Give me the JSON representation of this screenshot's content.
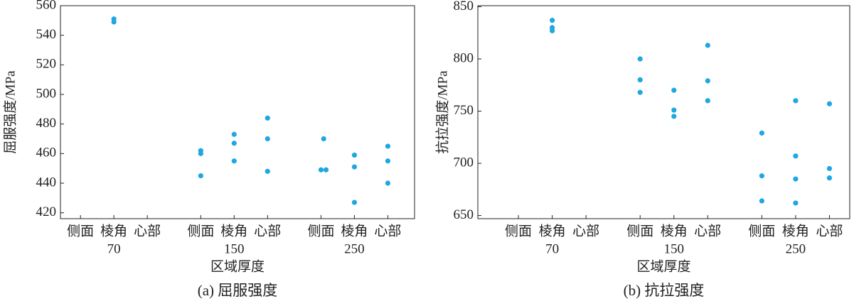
{
  "chart_data": [
    {
      "type": "scatter",
      "ylabel": "屈服强度/MPa",
      "xlabel": "区域厚度",
      "caption": "(a) 屈服强度",
      "color": "#1ea7e1",
      "xlim": [
        0.4,
        11.0
      ],
      "ylim": [
        416,
        560
      ],
      "xticks": [
        {
          "value": 1,
          "label": "侧面"
        },
        {
          "value": 2,
          "label": "棱角"
        },
        {
          "value": 3,
          "label": "心部"
        },
        {
          "value": 4.6,
          "label": "侧面"
        },
        {
          "value": 5.6,
          "label": "棱角"
        },
        {
          "value": 6.6,
          "label": "心部"
        },
        {
          "value": 8.2,
          "label": "侧面"
        },
        {
          "value": 9.2,
          "label": "棱角"
        },
        {
          "value": 10.2,
          "label": "心部"
        }
      ],
      "groups": [
        "70",
        "150",
        "250"
      ],
      "yticks": [
        420,
        440,
        460,
        480,
        500,
        520,
        540,
        560
      ],
      "x": [
        2,
        2,
        4.6,
        4.6,
        4.6,
        5.6,
        5.6,
        5.6,
        6.6,
        6.6,
        6.6,
        8.2,
        8.35,
        8.28,
        9.2,
        9.2,
        9.2,
        10.2,
        10.2,
        10.2
      ],
      "values": [
        551,
        549,
        462,
        460,
        445,
        473,
        467,
        455,
        484,
        470,
        448,
        449,
        449,
        470,
        459,
        451,
        427,
        465,
        455,
        440
      ]
    },
    {
      "type": "scatter",
      "ylabel": "抗拉强度/MPa",
      "xlabel": "区域厚度",
      "caption": "(b) 抗拉强度",
      "color": "#1ea7e1",
      "xlim": [
        -0.2,
        10.8
      ],
      "ylim": [
        647,
        851
      ],
      "xticks": [
        {
          "value": 1,
          "label": "侧面"
        },
        {
          "value": 2,
          "label": "棱角"
        },
        {
          "value": 3,
          "label": "心部"
        },
        {
          "value": 4.6,
          "label": "侧面"
        },
        {
          "value": 5.6,
          "label": "棱角"
        },
        {
          "value": 6.6,
          "label": "心部"
        },
        {
          "value": 8.2,
          "label": "侧面"
        },
        {
          "value": 9.2,
          "label": "棱角"
        },
        {
          "value": 10.2,
          "label": "心部"
        }
      ],
      "groups": [
        "70",
        "150",
        "250"
      ],
      "yticks": [
        650,
        700,
        750,
        800,
        850
      ],
      "x": [
        2,
        2,
        2,
        4.6,
        4.6,
        4.6,
        5.6,
        5.6,
        5.6,
        6.6,
        6.6,
        6.6,
        8.2,
        8.2,
        8.2,
        9.2,
        9.2,
        9.2,
        9.2,
        10.2,
        10.2,
        10.2
      ],
      "values": [
        837,
        830,
        827,
        800,
        780,
        768,
        770,
        751,
        745,
        813,
        779,
        760,
        729,
        688,
        664,
        760,
        707,
        685,
        662,
        757,
        695,
        686
      ]
    }
  ]
}
